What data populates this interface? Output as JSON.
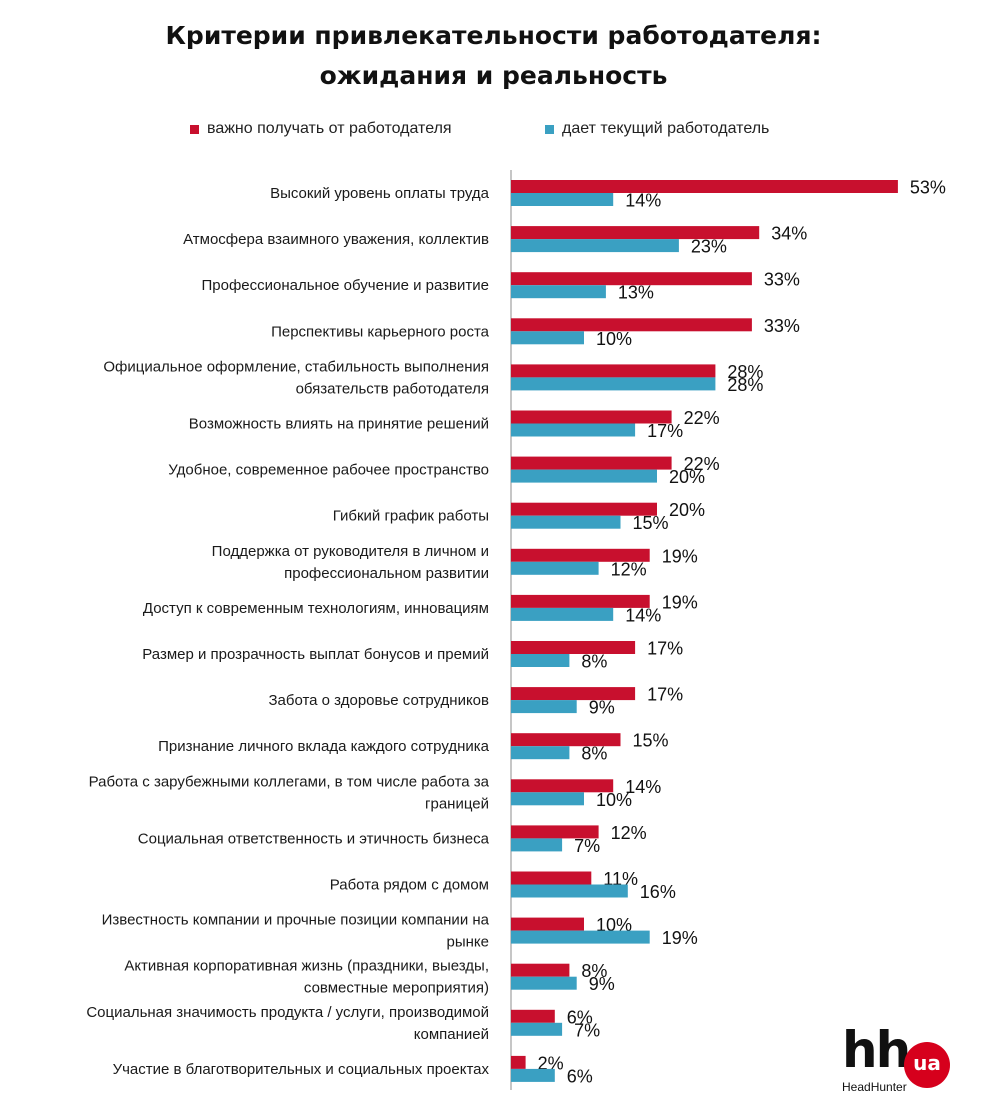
{
  "colors": {
    "expect": "#c8102e",
    "actual": "#3aa0c2",
    "axis": "#8c8c8c"
  },
  "chart_data": {
    "type": "bar",
    "orientation": "horizontal",
    "title": "Критерии привлекательности работодателя: ожидания и реальность",
    "title_lines": [
      "Критерии привлекательности работодателя:",
      "ожидания и реальность"
    ],
    "legend_position": "top",
    "grid": false,
    "xlim": [
      0,
      53
    ],
    "categories": [
      [
        "Высокий уровень оплаты труда"
      ],
      [
        "Атмосфера взаимного уважения, коллектив"
      ],
      [
        "Профессиональное обучение и развитие"
      ],
      [
        "Перспективы карьерного роста"
      ],
      [
        "Официальное оформление, стабильность выполнения",
        "обязательств работодателя"
      ],
      [
        "Возможность влиять на принятие решений"
      ],
      [
        "Удобное, современное рабочее пространство"
      ],
      [
        "Гибкий график работы"
      ],
      [
        "Поддержка от руководителя в личном и",
        "профессиональном развитии"
      ],
      [
        "Доступ к современным технологиям, инновациям"
      ],
      [
        "Размер и прозрачность выплат бонусов и премий"
      ],
      [
        "Забота о здоровье сотрудников"
      ],
      [
        "Признание личного вклада каждого сотрудника"
      ],
      [
        "Работа с зарубежными коллегами, в том числе работа за",
        "границей"
      ],
      [
        "Социальная ответственность и этичность бизнеса"
      ],
      [
        "Работа рядом с домом"
      ],
      [
        "Известность компании и прочные позиции компании на",
        "рынке"
      ],
      [
        "Активная корпоративная жизнь (праздники, выезды,",
        "совместные мероприятия)"
      ],
      [
        "Социальная значимость продукта / услуги, производимой",
        "компанией"
      ],
      [
        "Участие в благотворительных и социальных проектах"
      ]
    ],
    "series": [
      {
        "name": "важно получать от работодателя",
        "color": "#c8102e",
        "values": [
          53,
          34,
          33,
          33,
          28,
          22,
          22,
          20,
          19,
          19,
          17,
          17,
          15,
          14,
          12,
          11,
          10,
          8,
          6,
          2
        ]
      },
      {
        "name": "дает текущий работодатель",
        "color": "#3aa0c2",
        "values": [
          14,
          23,
          13,
          10,
          28,
          17,
          20,
          15,
          12,
          14,
          8,
          9,
          8,
          10,
          7,
          16,
          19,
          9,
          7,
          6
        ]
      }
    ],
    "value_suffix": "%"
  },
  "logo": {
    "mark": "hh",
    "badge": "ua",
    "caption": "HeadHunter"
  }
}
